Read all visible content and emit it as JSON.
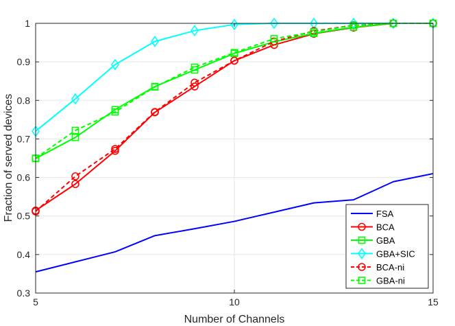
{
  "chart_data": {
    "type": "line",
    "xlabel": "Number of Channels",
    "ylabel": "Fraction of served devices",
    "xlim": [
      5,
      15
    ],
    "ylim": [
      0.3,
      1
    ],
    "x_ticks": [
      5,
      10,
      15
    ],
    "y_ticks": [
      0.3,
      0.4,
      0.5,
      0.6,
      0.7,
      0.8,
      0.9,
      1
    ],
    "x_tick_labels": [
      "5",
      "10",
      "15"
    ],
    "y_tick_labels": [
      "0.3",
      "0.4",
      "0.5",
      "0.6",
      "0.7",
      "0.8",
      "0.9",
      "1"
    ],
    "grid": true,
    "legend_position": "bottom-right",
    "x": [
      5,
      6,
      7,
      8,
      9,
      10,
      11,
      12,
      13,
      14,
      15
    ],
    "series": [
      {
        "name": "FSA",
        "color": "#0000ff",
        "dash": "solid",
        "marker": "none",
        "values": [
          0.355,
          0.381,
          0.407,
          0.449,
          0.467,
          0.486,
          0.51,
          0.534,
          0.542,
          0.589,
          0.61
        ]
      },
      {
        "name": "BCA",
        "color": "#ff0000",
        "dash": "solid",
        "marker": "circle",
        "values": [
          0.514,
          0.583,
          0.669,
          0.769,
          0.836,
          0.903,
          0.944,
          0.973,
          0.989,
          1.0,
          1.0
        ]
      },
      {
        "name": "GBA",
        "color": "#00ff00",
        "dash": "solid",
        "marker": "square",
        "values": [
          0.649,
          0.704,
          0.776,
          0.836,
          0.879,
          0.922,
          0.952,
          0.974,
          0.99,
          1.0,
          1.0
        ]
      },
      {
        "name": "GBA+SIC",
        "color": "#00ffff",
        "dash": "solid",
        "marker": "diamond",
        "values": [
          0.72,
          0.804,
          0.893,
          0.953,
          0.981,
          0.997,
          1.0,
          1.0,
          1.0,
          1.0,
          1.0
        ]
      },
      {
        "name": "BCA-ni",
        "color": "#ff0000",
        "dash": "dashed",
        "marker": "circle",
        "values": [
          0.512,
          0.603,
          0.674,
          0.77,
          0.846,
          0.903,
          0.953,
          0.98,
          0.995,
          1.0,
          1.0
        ]
      },
      {
        "name": "GBA-ni",
        "color": "#00ff00",
        "dash": "dashed",
        "marker": "square",
        "values": [
          0.65,
          0.722,
          0.77,
          0.835,
          0.886,
          0.924,
          0.96,
          0.978,
          0.995,
          1.0,
          1.0
        ]
      }
    ]
  }
}
